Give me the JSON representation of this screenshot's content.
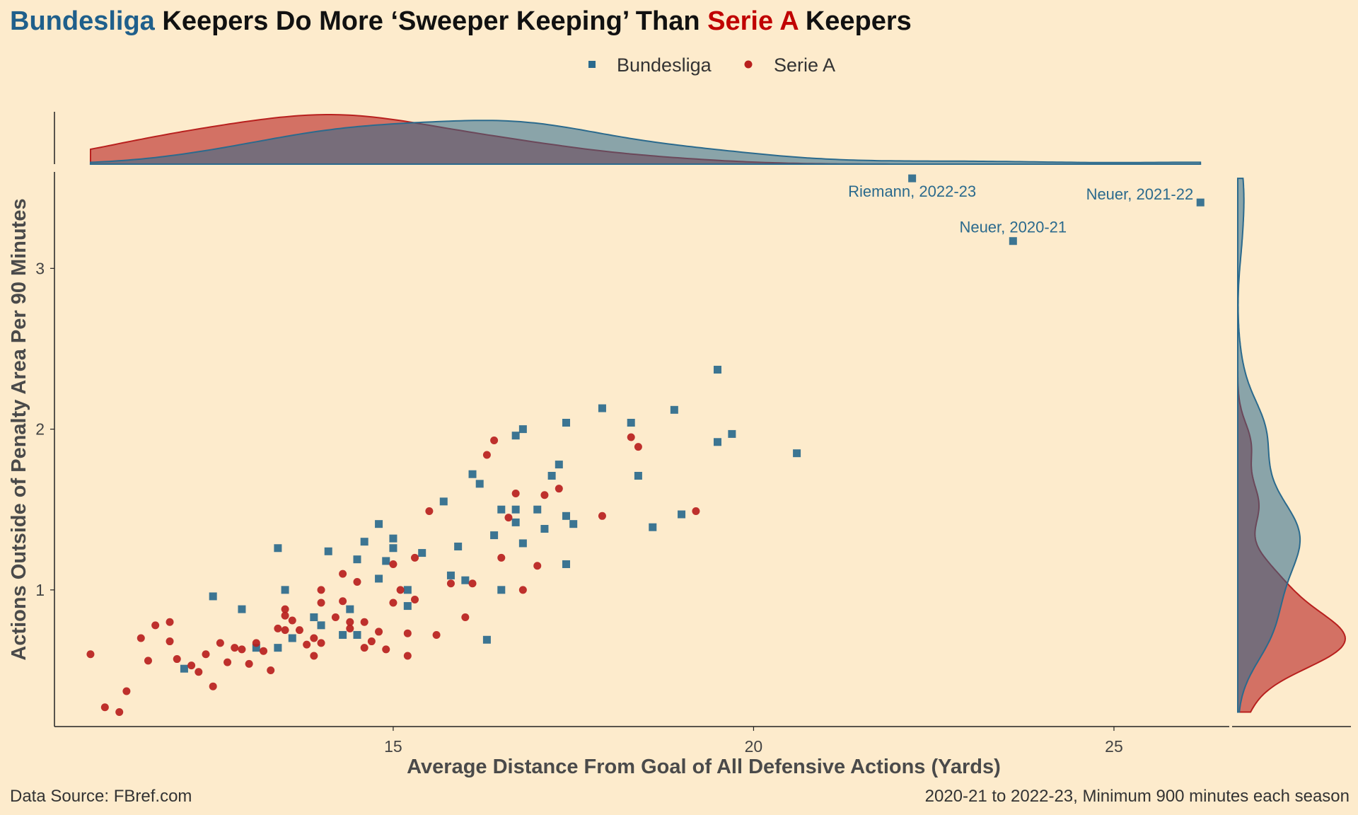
{
  "title": {
    "part1": "Bundesliga",
    "part2": " Keepers Do More ‘Sweeper Keeping’ Than ",
    "part3": "Serie A",
    "part4": " Keepers"
  },
  "legend": [
    "Bundesliga",
    "Serie A"
  ],
  "caption_left": "Data Source: FBref.com",
  "caption_right": "2020-21 to 2022-23, Minimum 900 minutes each season",
  "colors": {
    "bundesliga": "#2B6A8D",
    "seriea": "#B8201E",
    "background": "#FDEBCC"
  },
  "chart_data": {
    "type": "scatter",
    "xlabel": "Average Distance From Goal of All Defensive Actions (Yards)",
    "ylabel": "Actions Outside of Penalty Area Per 90 Minutes",
    "x_ticks": [
      15,
      20,
      25
    ],
    "y_ticks": [
      1,
      2,
      3
    ],
    "xlim": [
      10.3,
      26.6
    ],
    "ylim": [
      0.15,
      3.6
    ],
    "grid": false,
    "legend_position": "top",
    "marginal_density": true,
    "series": [
      {
        "name": "Bundesliga",
        "marker": "square",
        "points": [
          [
            12.1,
            0.51
          ],
          [
            12.5,
            0.96
          ],
          [
            12.9,
            0.88
          ],
          [
            13.1,
            0.64
          ],
          [
            13.4,
            0.64
          ],
          [
            13.4,
            1.26
          ],
          [
            13.5,
            1.0
          ],
          [
            13.6,
            0.7
          ],
          [
            13.9,
            0.83
          ],
          [
            14.0,
            0.78
          ],
          [
            14.1,
            1.24
          ],
          [
            14.3,
            0.72
          ],
          [
            14.4,
            0.88
          ],
          [
            14.5,
            0.72
          ],
          [
            14.5,
            1.19
          ],
          [
            14.6,
            1.3
          ],
          [
            14.8,
            1.07
          ],
          [
            14.8,
            1.41
          ],
          [
            14.9,
            1.18
          ],
          [
            15.0,
            1.26
          ],
          [
            15.0,
            1.32
          ],
          [
            15.2,
            0.9
          ],
          [
            15.2,
            1.0
          ],
          [
            15.4,
            1.23
          ],
          [
            15.7,
            1.55
          ],
          [
            15.8,
            1.09
          ],
          [
            15.9,
            1.27
          ],
          [
            16.0,
            1.06
          ],
          [
            16.1,
            1.72
          ],
          [
            16.2,
            1.66
          ],
          [
            16.4,
            1.34
          ],
          [
            16.5,
            1.0
          ],
          [
            16.5,
            1.5
          ],
          [
            16.7,
            1.42
          ],
          [
            16.7,
            1.5
          ],
          [
            16.7,
            1.96
          ],
          [
            16.8,
            1.29
          ],
          [
            16.8,
            2.0
          ],
          [
            17.0,
            1.5
          ],
          [
            17.1,
            1.38
          ],
          [
            17.2,
            1.71
          ],
          [
            17.3,
            1.78
          ],
          [
            17.4,
            1.46
          ],
          [
            17.4,
            2.04
          ],
          [
            17.4,
            1.16
          ],
          [
            17.5,
            1.41
          ],
          [
            17.9,
            2.13
          ],
          [
            18.3,
            2.04
          ],
          [
            18.4,
            1.71
          ],
          [
            18.6,
            1.39
          ],
          [
            18.9,
            2.12
          ],
          [
            19.0,
            1.47
          ],
          [
            19.5,
            2.37
          ],
          [
            19.5,
            1.92
          ],
          [
            19.7,
            1.97
          ],
          [
            20.6,
            1.85
          ],
          [
            16.3,
            0.69
          ],
          [
            22.2,
            3.56
          ],
          [
            23.6,
            3.17
          ],
          [
            26.2,
            3.41
          ]
        ]
      },
      {
        "name": "Serie A",
        "marker": "circle",
        "points": [
          [
            10.8,
            0.6
          ],
          [
            11.0,
            0.27
          ],
          [
            11.2,
            0.24
          ],
          [
            11.3,
            0.37
          ],
          [
            11.5,
            0.7
          ],
          [
            11.6,
            0.56
          ],
          [
            11.7,
            0.78
          ],
          [
            11.9,
            0.8
          ],
          [
            11.9,
            0.68
          ],
          [
            12.0,
            0.57
          ],
          [
            12.2,
            0.53
          ],
          [
            12.3,
            0.49
          ],
          [
            12.4,
            0.6
          ],
          [
            12.5,
            0.4
          ],
          [
            12.6,
            0.67
          ],
          [
            12.7,
            0.55
          ],
          [
            12.8,
            0.64
          ],
          [
            12.9,
            0.63
          ],
          [
            13.0,
            0.54
          ],
          [
            13.1,
            0.67
          ],
          [
            13.2,
            0.62
          ],
          [
            13.3,
            0.5
          ],
          [
            13.4,
            0.76
          ],
          [
            13.5,
            0.84
          ],
          [
            13.5,
            0.88
          ],
          [
            13.6,
            0.81
          ],
          [
            13.7,
            0.75
          ],
          [
            13.8,
            0.66
          ],
          [
            13.9,
            0.59
          ],
          [
            13.9,
            0.7
          ],
          [
            14.0,
            0.67
          ],
          [
            14.0,
            0.92
          ],
          [
            14.0,
            1.0
          ],
          [
            14.2,
            0.83
          ],
          [
            14.3,
            0.93
          ],
          [
            14.3,
            1.1
          ],
          [
            14.4,
            0.76
          ],
          [
            14.4,
            0.8
          ],
          [
            14.5,
            1.05
          ],
          [
            14.6,
            0.8
          ],
          [
            14.6,
            0.64
          ],
          [
            14.7,
            0.68
          ],
          [
            14.8,
            0.74
          ],
          [
            14.9,
            0.63
          ],
          [
            15.0,
            0.92
          ],
          [
            15.0,
            1.16
          ],
          [
            15.1,
            1.0
          ],
          [
            15.2,
            0.59
          ],
          [
            15.3,
            0.94
          ],
          [
            15.3,
            1.2
          ],
          [
            15.5,
            1.49
          ],
          [
            15.6,
            0.72
          ],
          [
            15.8,
            1.04
          ],
          [
            16.0,
            0.83
          ],
          [
            16.1,
            1.04
          ],
          [
            16.3,
            1.84
          ],
          [
            16.4,
            1.93
          ],
          [
            16.5,
            1.2
          ],
          [
            16.6,
            1.45
          ],
          [
            16.7,
            1.6
          ],
          [
            16.8,
            1.0
          ],
          [
            17.0,
            1.15
          ],
          [
            17.1,
            1.59
          ],
          [
            17.3,
            1.63
          ],
          [
            17.9,
            1.46
          ],
          [
            18.3,
            1.95
          ],
          [
            18.4,
            1.89
          ],
          [
            19.2,
            1.49
          ],
          [
            15.2,
            0.73
          ],
          [
            13.5,
            0.75
          ]
        ]
      }
    ],
    "annotations": [
      {
        "text": "Riemann, 2022-23",
        "x": 22.2,
        "y": 3.56
      },
      {
        "text": "Neuer, 2020-21",
        "x": 23.6,
        "y": 3.17
      },
      {
        "text": "Neuer, 2021-22",
        "x": 26.2,
        "y": 3.41
      }
    ]
  }
}
